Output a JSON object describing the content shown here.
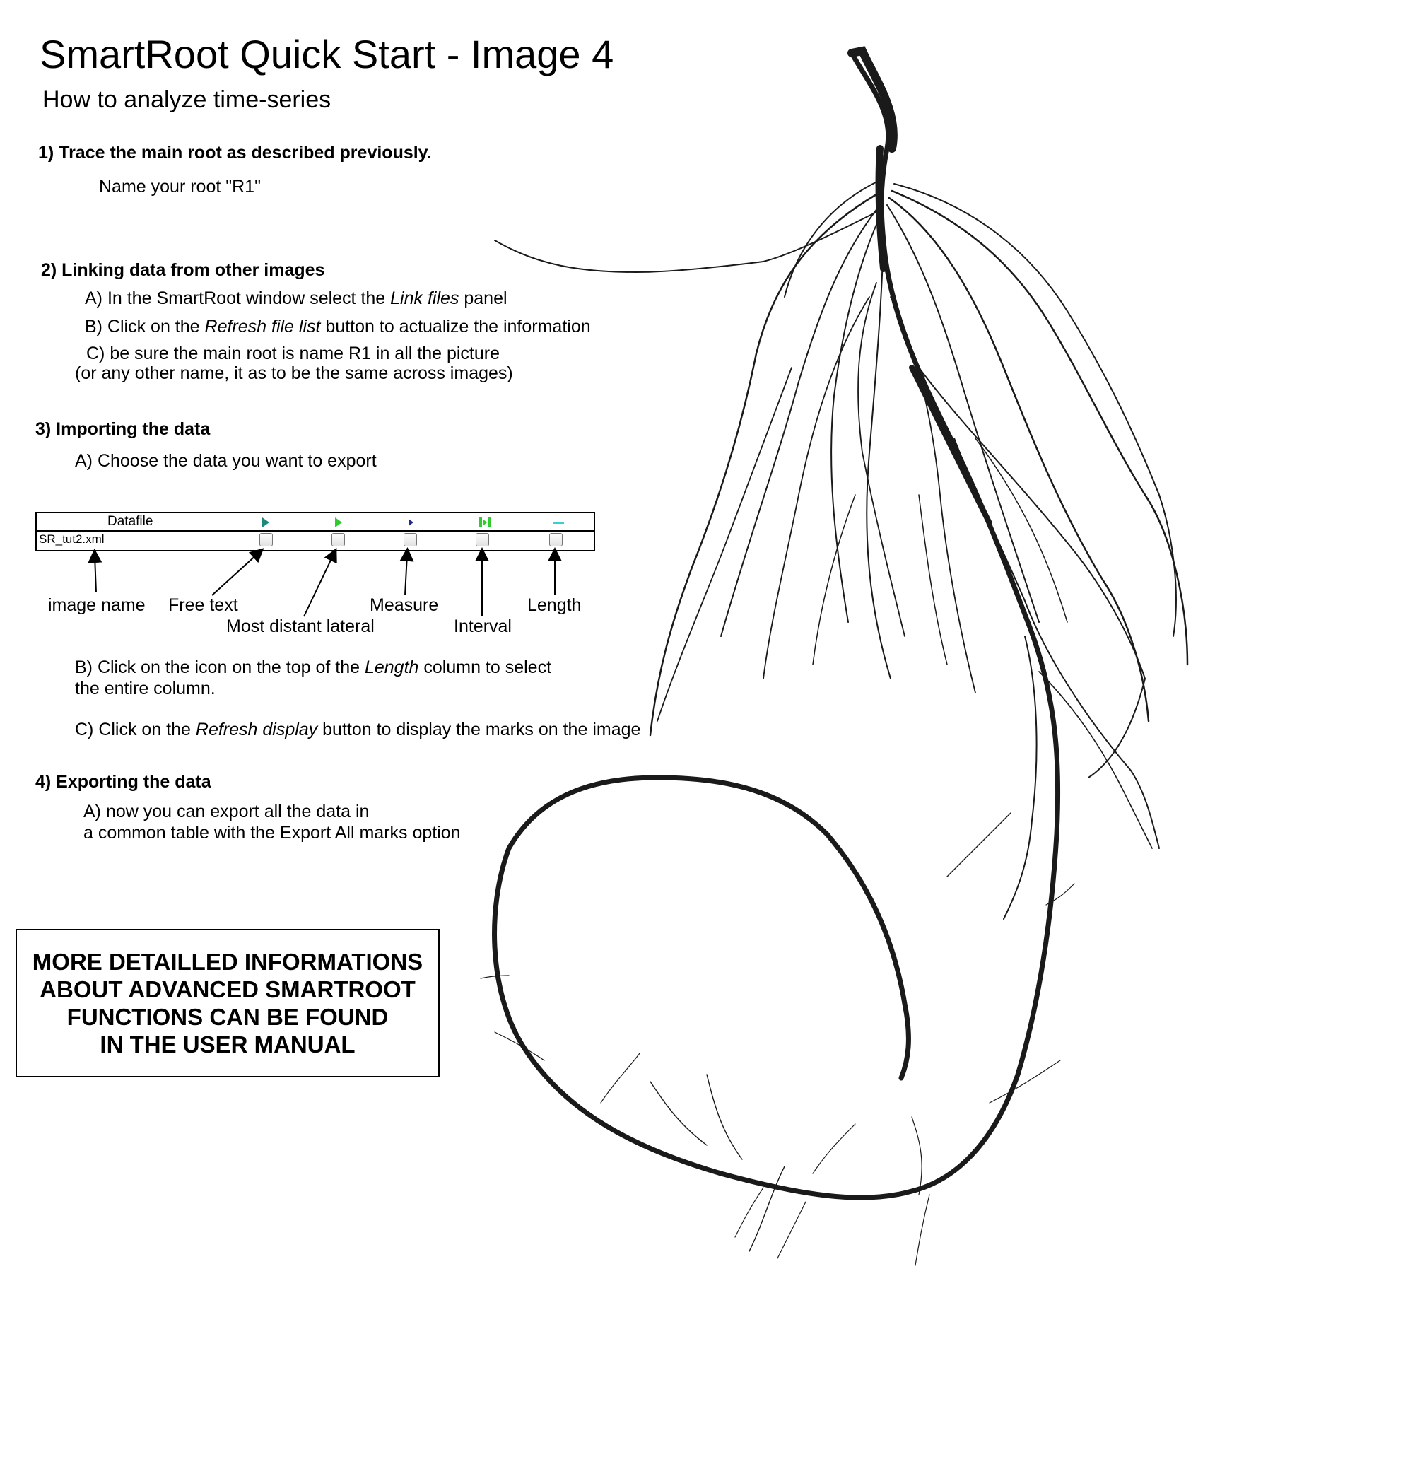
{
  "header": {
    "title": "SmartRoot Quick Start -  Image 4",
    "subtitle": "How to analyze time-series"
  },
  "step1": {
    "heading": "1)  Trace the main root as described previously.",
    "text": "Name your root \"R1\""
  },
  "step2": {
    "heading": "2) Linking data from other images",
    "a_pre": "A) In the SmartRoot window select the ",
    "a_em": "Link files",
    "a_post": " panel",
    "b_pre": "B) Click on the ",
    "b_em": "Refresh file list",
    "b_post": "  button to actualize the information",
    "c_line1": "C) be sure the main root is name R1 in all the picture",
    "c_line2": "(or any other name, it as to be the same across images)"
  },
  "step3": {
    "heading": "3) Importing the data",
    "a": "A) Choose the data you want to export",
    "panel": {
      "column_title": "Datafile",
      "file_name": "SR_tut2.xml"
    },
    "labels": {
      "image_name": "image name",
      "free_text": "Free text",
      "most_distant_lateral": "Most distant lateral",
      "measure": "Measure",
      "interval": "Interval",
      "length": "Length"
    },
    "b_pre": "B) Click on the icon on the top of the ",
    "b_em": "Length",
    "b_post": " column to select",
    "b_line2": "the entire column.",
    "c_pre": "C) Click on the ",
    "c_em": "Refresh display",
    "c_post": " button to display the marks on the image"
  },
  "step4": {
    "heading": "4) Exporting the data",
    "a_line1": "A)  now you can export all the data in",
    "a_line2": "a common table with the Export All marks option"
  },
  "notice": {
    "text": "MORE DETAILLED INFORMATIONS\nABOUT ADVANCED SMARTROOT\nFUNCTIONS CAN BE FOUND\nIN THE USER MANUAL"
  },
  "colors": {
    "icon_green": "#2ecc2e",
    "icon_teal": "#1b8a7a",
    "icon_navy": "#1f2a8a",
    "icon_cyan": "#39d0d0",
    "root": "#1a1a1a"
  }
}
